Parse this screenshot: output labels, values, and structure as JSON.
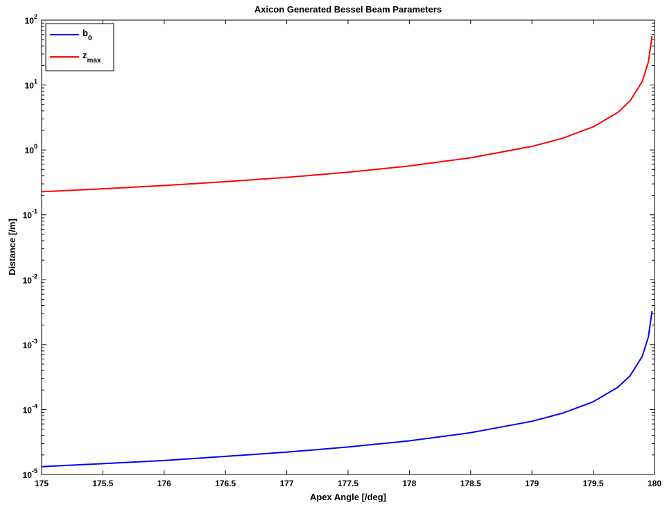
{
  "chart_data": {
    "type": "line",
    "title": "Axicon Generated Bessel Beam Parameters",
    "xlabel": "Apex Angle [/deg]",
    "ylabel": "Distance [/m]",
    "xlim": [
      175,
      180
    ],
    "ylim": [
      1e-05,
      100
    ],
    "yscale": "log",
    "grid": false,
    "legend_position": "top-left",
    "x_ticks": [
      "175",
      "175.5",
      "176",
      "176.5",
      "177",
      "177.5",
      "178",
      "178.5",
      "179",
      "179.5",
      "180"
    ],
    "y_ticks": [
      {
        "base": "10",
        "exp": "-5"
      },
      {
        "base": "10",
        "exp": "-4"
      },
      {
        "base": "10",
        "exp": "-3"
      },
      {
        "base": "10",
        "exp": "-2"
      },
      {
        "base": "10",
        "exp": "-1"
      },
      {
        "base": "10",
        "exp": "0"
      },
      {
        "base": "10",
        "exp": "1"
      },
      {
        "base": "10",
        "exp": "2"
      }
    ],
    "series": [
      {
        "name": "b",
        "name_sub": "0",
        "color": "#0000ff",
        "x": [
          175,
          175.5,
          176,
          176.5,
          177,
          177.5,
          178,
          178.5,
          179,
          179.25,
          179.5,
          179.7,
          179.8,
          179.9,
          179.95,
          179.98
        ],
        "y": [
          1.32e-05,
          1.47e-05,
          1.64e-05,
          1.9e-05,
          2.21e-05,
          2.65e-05,
          3.3e-05,
          4.4e-05,
          6.6e-05,
          8.8e-05,
          0.000132,
          0.00022,
          0.00033,
          0.00066,
          0.00132,
          0.0033
        ]
      },
      {
        "name": "z",
        "name_sub": "max",
        "color": "#ff0000",
        "x": [
          175,
          175.5,
          176,
          176.5,
          177,
          177.5,
          178,
          178.5,
          179,
          179.25,
          179.5,
          179.7,
          179.8,
          179.9,
          179.95,
          179.98
        ],
        "y": [
          0.227,
          0.252,
          0.283,
          0.324,
          0.378,
          0.454,
          0.567,
          0.756,
          1.134,
          1.51,
          2.27,
          3.78,
          5.67,
          11.34,
          22.7,
          56.7
        ]
      }
    ]
  }
}
